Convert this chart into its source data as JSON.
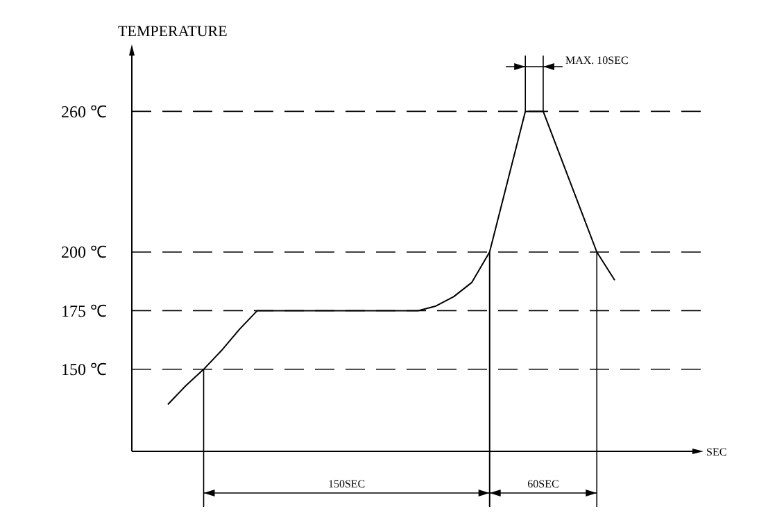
{
  "chart_data": {
    "type": "line",
    "ylabel": "TEMPERATURE",
    "categories": [
      null,
      null,
      null,
      null,
      null,
      null,
      null,
      null,
      null,
      null,
      null,
      null,
      null,
      null,
      null,
      null,
      null,
      null,
      null,
      null,
      null,
      null,
      null,
      null,
      null,
      null
    ],
    "series": [
      {
        "color": "#000000",
        "values": [
          135,
          143,
          150,
          158,
          167,
          175,
          175,
          175,
          175,
          175,
          175,
          175,
          175,
          175,
          175,
          177,
          181,
          187,
          200,
          230,
          260,
          260,
          240,
          220,
          200,
          188
        ]
      }
    ],
    "ylim": [
      115,
      285
    ],
    "yticks": [
      {
        "value": 150,
        "label": "150 ℃"
      },
      {
        "value": 175,
        "label": "175 ℃"
      },
      {
        "value": 200,
        "label": "200 ℃"
      },
      {
        "value": 260,
        "label": "260 ℃"
      }
    ],
    "tick_labels": "y",
    "grid": "y",
    "marker": "none",
    "line_style": "solid",
    "annotations": [
      "150SEC",
      "60SEC",
      "MAX. 10SEC",
      "SEC"
    ]
  }
}
